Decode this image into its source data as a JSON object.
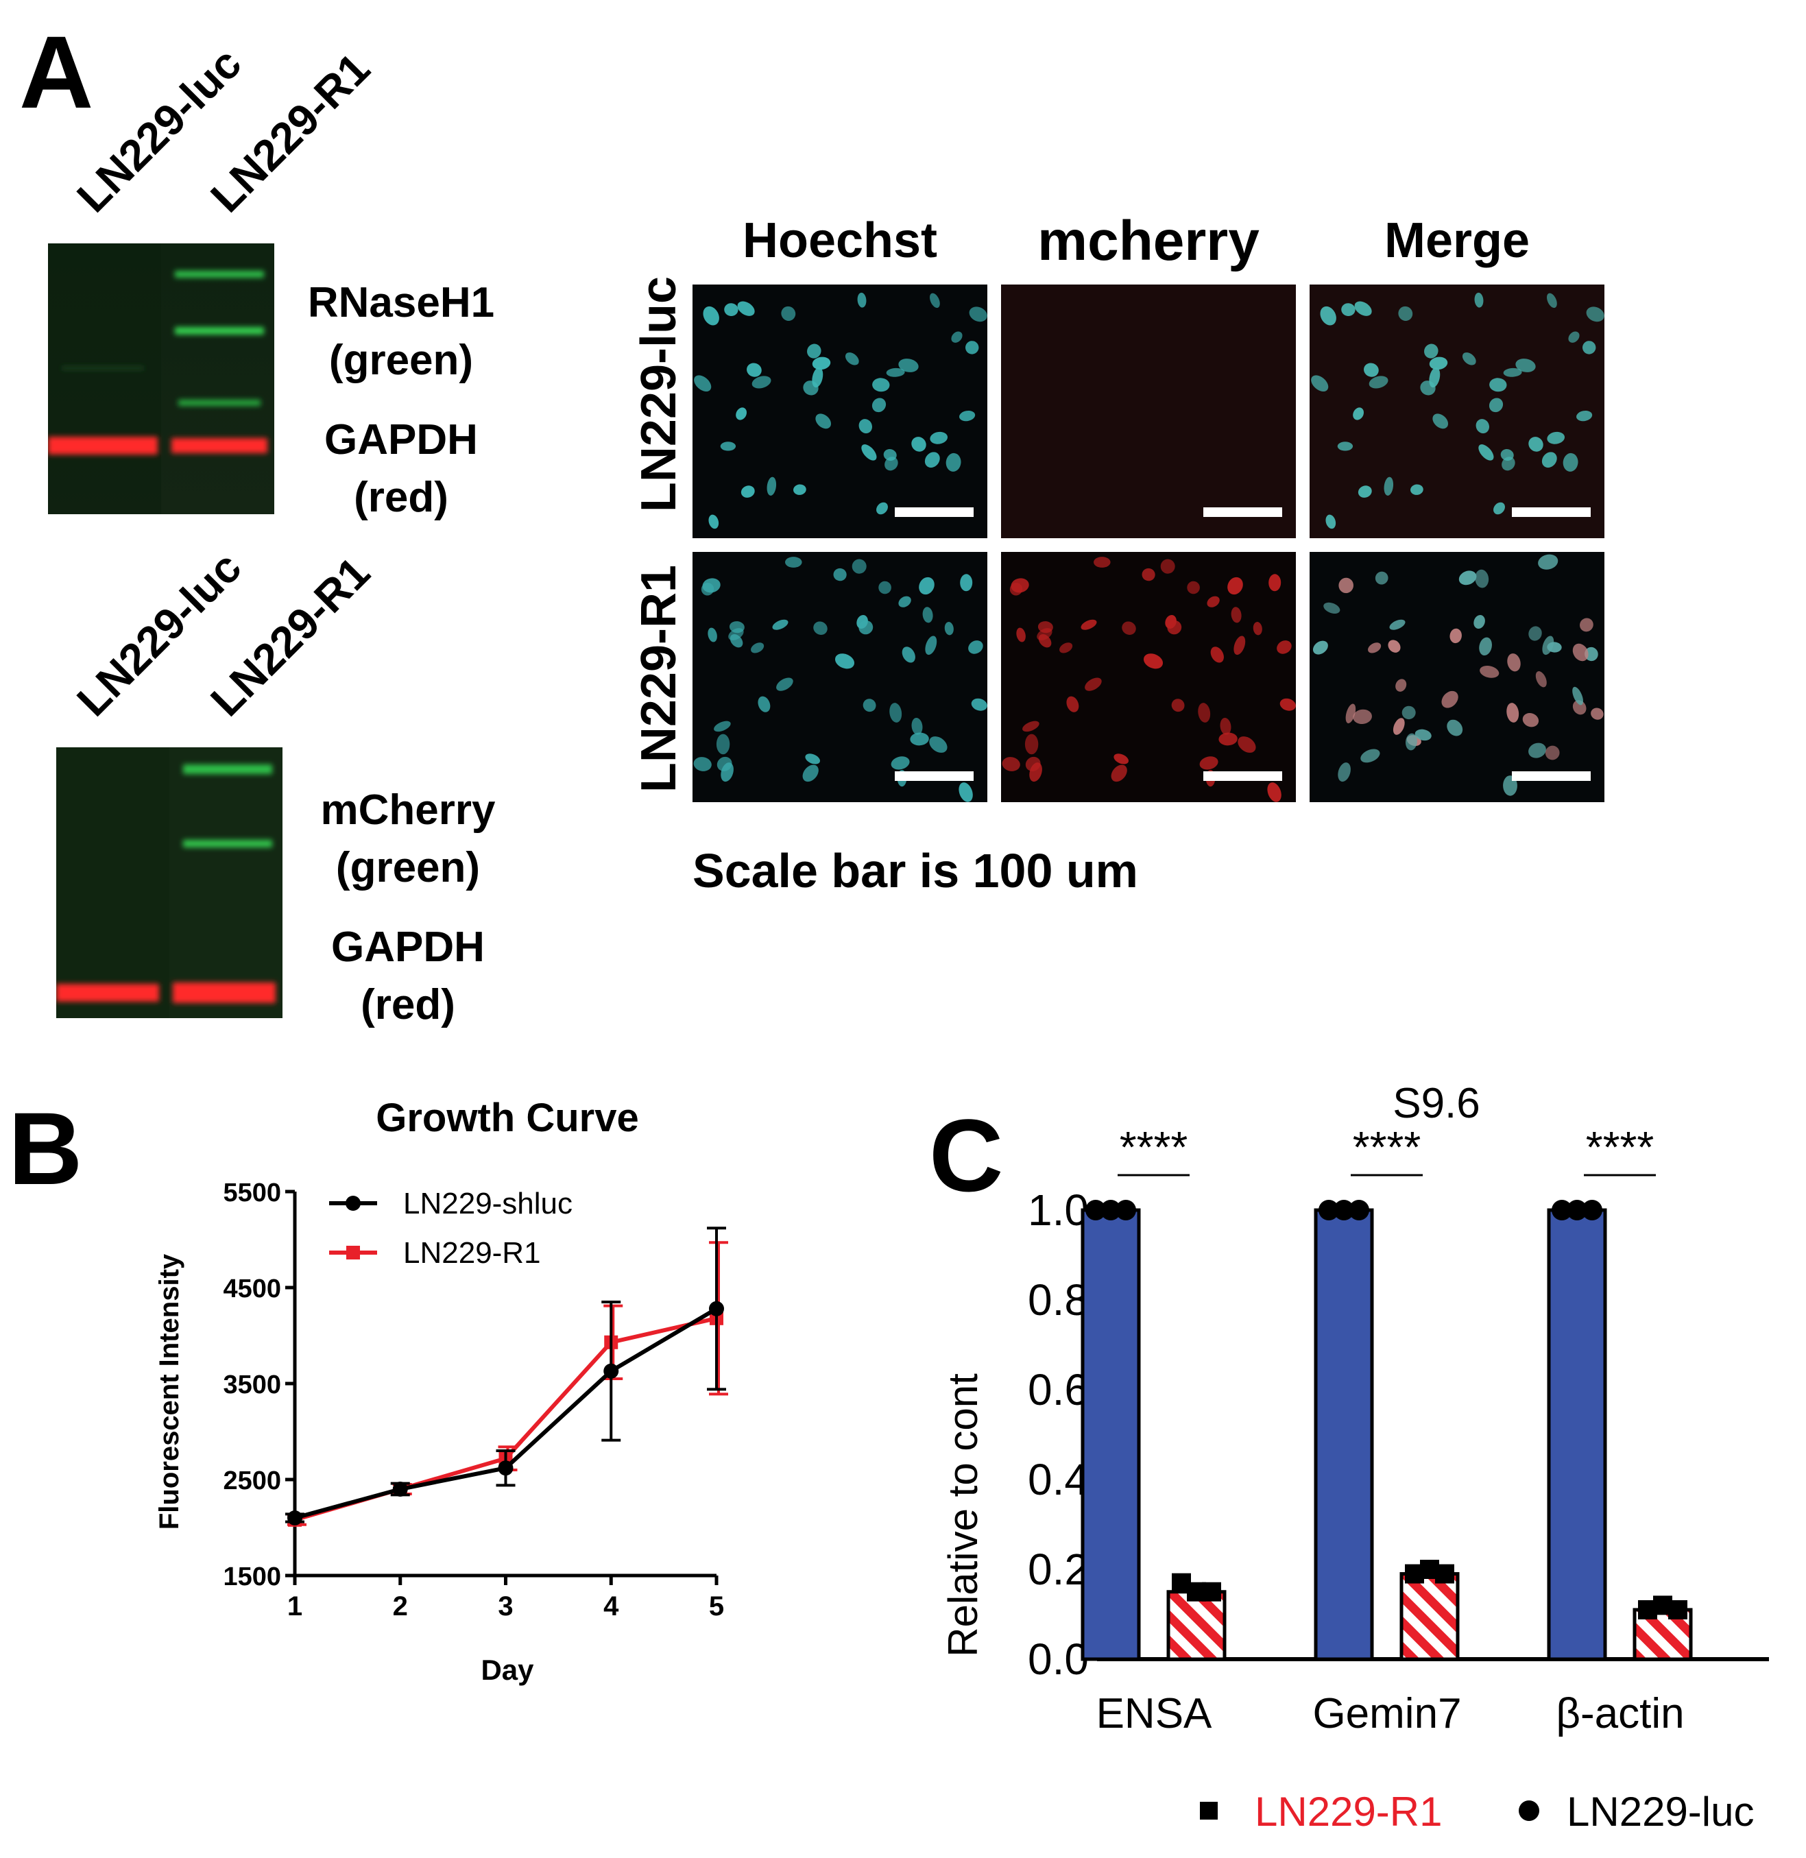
{
  "panel_a": {
    "letter": "A",
    "blot1": {
      "lanes": [
        "LN229-luc",
        "LN229-R1"
      ],
      "label_top": [
        "RNaseH1",
        "(green)"
      ],
      "label_bottom": [
        "GAPDH",
        "(red)"
      ]
    },
    "blot2": {
      "lanes": [
        "LN229-luc",
        "LN229-R1"
      ],
      "label_top": [
        "mCherry",
        "(green)"
      ],
      "label_bottom": [
        "GAPDH",
        "(red)"
      ]
    },
    "microscopy": {
      "columns": [
        "Hoechst",
        "mcherry",
        "Merge"
      ],
      "rows": [
        "LN229-luc",
        "LN229-R1"
      ],
      "caption": "Scale bar is 100 um"
    },
    "colors": {
      "hoechst": "#3fb8b8",
      "mcherry": "#d22020",
      "blot_green": "#2fbf4a",
      "blot_red": "#ff2a2a"
    }
  },
  "panel_b": {
    "letter": "B"
  },
  "panel_c": {
    "letter": "C"
  },
  "chart_data": [
    {
      "type": "line",
      "title": "Growth Curve",
      "xlabel": "Day",
      "ylabel": "Fluorescent Intensity",
      "x": [
        1,
        2,
        3,
        4,
        5
      ],
      "xlim": [
        1,
        5
      ],
      "ylim": [
        1500,
        5500
      ],
      "yticks": [
        1500,
        2500,
        3500,
        4500,
        5500
      ],
      "legend_position": "top-left",
      "series": [
        {
          "name": "LN229-shluc",
          "color": "#000000",
          "marker": "circle",
          "values": [
            2100,
            2400,
            2620,
            3630,
            4280
          ],
          "errors": [
            40,
            60,
            180,
            720,
            840
          ]
        },
        {
          "name": "LN229-R1",
          "color": "#e8202a",
          "marker": "square",
          "values": [
            2080,
            2400,
            2720,
            3930,
            4180
          ],
          "errors": [
            50,
            50,
            120,
            380,
            790
          ]
        }
      ]
    },
    {
      "type": "bar",
      "title": "S9.6",
      "ylabel": "Relative to cont",
      "ylim": [
        0.0,
        1.0
      ],
      "yticks": [
        "0.0",
        "0.2",
        "0.4",
        "0.6",
        "0.8",
        "1.0"
      ],
      "categories": [
        "ENSA",
        "Gemin7",
        "β-actin"
      ],
      "significance": [
        "****",
        "****",
        "****"
      ],
      "series": [
        {
          "name": "LN229-luc",
          "color": "#3a55a8",
          "pattern": "solid",
          "marker": "circle",
          "values": [
            1.0,
            1.0,
            1.0
          ],
          "points": [
            [
              1.0,
              1.0,
              1.0
            ],
            [
              1.0,
              1.0,
              1.0
            ],
            [
              1.0,
              1.0,
              1.0
            ]
          ]
        },
        {
          "name": "LN229-R1",
          "color": "#e8202a",
          "pattern": "hatched",
          "marker": "square",
          "values": [
            0.15,
            0.19,
            0.11
          ],
          "points": [
            [
              0.17,
              0.15,
              0.15
            ],
            [
              0.19,
              0.2,
              0.19
            ],
            [
              0.11,
              0.12,
              0.11
            ]
          ]
        }
      ],
      "legend": [
        {
          "label": "LN229-R1",
          "color": "#e8202a",
          "marker": "square"
        },
        {
          "label": "LN229-luc",
          "color": "#000000",
          "marker": "circle"
        }
      ]
    }
  ]
}
